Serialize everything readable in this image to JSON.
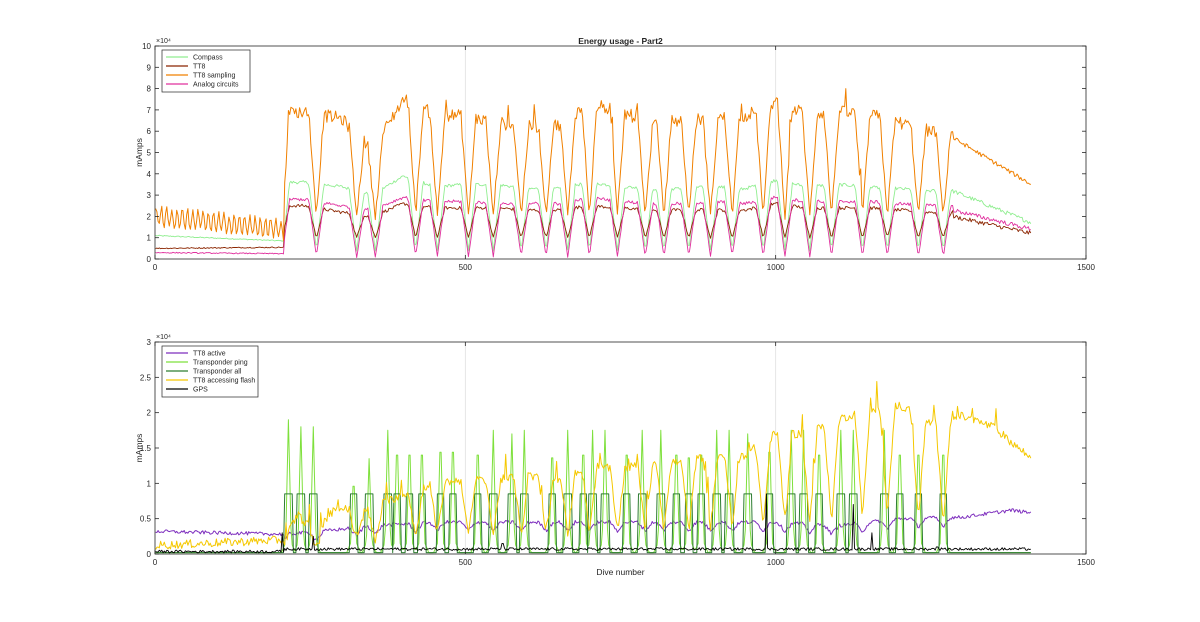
{
  "chart_data": [
    {
      "type": "line",
      "title": "Energy usage - Part2",
      "xlabel": "",
      "ylabel": "mAmps",
      "xlim": [
        0,
        1500
      ],
      "ylim": [
        0,
        10
      ],
      "x_ticks": [
        0,
        500,
        1000,
        1500
      ],
      "y_ticks": [
        0,
        1,
        2,
        3,
        4,
        5,
        6,
        7,
        8,
        9,
        10
      ],
      "y_exponent_label": "×10⁴",
      "y_multiplier": 10000,
      "grid": "x-only",
      "legend_position": "top-left",
      "x_range": [
        1,
        1412
      ],
      "series": [
        {
          "name": "Compass",
          "color": "#90ee90",
          "width": 0.9,
          "pre": [
            {
              "x": 0,
              "y": 1.1
            },
            {
              "x": 207,
              "y": 0.85
            }
          ],
          "low": 0.4,
          "high": 3.3,
          "post": [
            3.2,
            1.7
          ],
          "high_pts": [
            [
              240,
              3.6
            ],
            [
              300,
              3.4
            ],
            [
              350,
              3.0
            ],
            [
              400,
              3.9
            ],
            [
              450,
              3.4
            ],
            [
              500,
              3.5
            ],
            [
              550,
              3.5
            ],
            [
              600,
              3.3
            ],
            [
              650,
              3.3
            ],
            [
              700,
              3.6
            ],
            [
              750,
              3.4
            ],
            [
              800,
              3.3
            ],
            [
              850,
              3.3
            ],
            [
              900,
              3.4
            ],
            [
              950,
              3.3
            ],
            [
              1000,
              3.7
            ],
            [
              1050,
              3.4
            ],
            [
              1100,
              3.5
            ],
            [
              1150,
              3.4
            ],
            [
              1200,
              3.3
            ],
            [
              1250,
              3.2
            ]
          ]
        },
        {
          "name": "TT8",
          "color": "#8b2500",
          "width": 0.9,
          "pre": [
            {
              "x": 0,
              "y": 0.5
            },
            {
              "x": 207,
              "y": 0.55
            }
          ],
          "low": 1.0,
          "high": 2.4,
          "post": [
            2.0,
            1.2
          ],
          "high_pts": [
            [
              240,
              2.5
            ],
            [
              300,
              2.2
            ],
            [
              350,
              2.0
            ],
            [
              400,
              2.6
            ],
            [
              450,
              2.4
            ],
            [
              500,
              2.4
            ],
            [
              550,
              2.4
            ],
            [
              600,
              2.3
            ],
            [
              650,
              2.3
            ],
            [
              700,
              2.5
            ],
            [
              750,
              2.4
            ],
            [
              800,
              2.3
            ],
            [
              850,
              2.3
            ],
            [
              900,
              2.3
            ],
            [
              950,
              2.3
            ],
            [
              1000,
              2.6
            ],
            [
              1050,
              2.4
            ],
            [
              1100,
              2.4
            ],
            [
              1150,
              2.4
            ],
            [
              1200,
              2.3
            ],
            [
              1250,
              2.2
            ]
          ]
        },
        {
          "name": "TT8 sampling",
          "color": "#f08000",
          "width": 1.0,
          "pre": [
            {
              "x": 0,
              "y": 2.0
            },
            {
              "x": 207,
              "y": 1.4
            }
          ],
          "low": 2.0,
          "high": 6.5,
          "post": [
            5.7,
            3.5
          ],
          "high_pts": [
            [
              240,
              6.9
            ],
            [
              300,
              6.6
            ],
            [
              350,
              5.1
            ],
            [
              400,
              7.5
            ],
            [
              450,
              6.8
            ],
            [
              500,
              6.7
            ],
            [
              550,
              6.4
            ],
            [
              600,
              6.2
            ],
            [
              650,
              6.3
            ],
            [
              700,
              7.3
            ],
            [
              750,
              6.9
            ],
            [
              800,
              6.4
            ],
            [
              850,
              6.5
            ],
            [
              900,
              6.6
            ],
            [
              950,
              6.7
            ],
            [
              1000,
              7.4
            ],
            [
              1050,
              6.8
            ],
            [
              1100,
              6.9
            ],
            [
              1150,
              6.8
            ],
            [
              1200,
              6.4
            ],
            [
              1250,
              6.0
            ]
          ]
        },
        {
          "name": "Analog circuits",
          "color": "#e0309e",
          "width": 0.9,
          "pre": [
            {
              "x": 0,
              "y": 0.3
            },
            {
              "x": 207,
              "y": 0.25
            }
          ],
          "low": 0.1,
          "high": 2.6,
          "post": [
            2.3,
            1.4
          ],
          "high_pts": [
            [
              240,
              2.8
            ],
            [
              300,
              2.5
            ],
            [
              350,
              2.3
            ],
            [
              400,
              2.9
            ],
            [
              450,
              2.7
            ],
            [
              500,
              2.7
            ],
            [
              550,
              2.6
            ],
            [
              600,
              2.6
            ],
            [
              650,
              2.6
            ],
            [
              700,
              2.9
            ],
            [
              750,
              2.7
            ],
            [
              800,
              2.6
            ],
            [
              850,
              2.6
            ],
            [
              900,
              2.7
            ],
            [
              950,
              2.6
            ],
            [
              1000,
              2.9
            ],
            [
              1050,
              2.7
            ],
            [
              1100,
              2.7
            ],
            [
              1150,
              2.7
            ],
            [
              1200,
              2.6
            ],
            [
              1250,
              2.5
            ]
          ]
        }
      ]
    },
    {
      "type": "line",
      "title": "",
      "xlabel": "Dive number",
      "ylabel": "mAmps",
      "xlim": [
        0,
        1500
      ],
      "ylim": [
        0,
        3
      ],
      "x_ticks": [
        0,
        500,
        1000,
        1500
      ],
      "y_ticks": [
        0,
        0.5,
        1,
        1.5,
        2,
        2.5,
        3
      ],
      "y_exponent_label": "×10⁴",
      "y_multiplier": 10000,
      "grid": "x-only",
      "legend_position": "top-left",
      "x_range": [
        1,
        1412
      ],
      "series": [
        {
          "name": "TT8 active",
          "color": "#7e2fbe",
          "width": 1.0,
          "points": [
            [
              0,
              0.32
            ],
            [
              207,
              0.28
            ],
            [
              240,
              0.3
            ],
            [
              300,
              0.35
            ],
            [
              350,
              0.4
            ],
            [
              450,
              0.45
            ],
            [
              600,
              0.45
            ],
            [
              800,
              0.45
            ],
            [
              1000,
              0.45
            ],
            [
              1100,
              0.4
            ],
            [
              1200,
              0.5
            ],
            [
              1300,
              0.52
            ],
            [
              1380,
              0.62
            ],
            [
              1412,
              0.58
            ]
          ]
        },
        {
          "name": "Transponder ping",
          "color": "#7ee03c",
          "width": 1.0,
          "peaks": [
            [
              215,
              1.9
            ],
            [
              235,
              1.8
            ],
            [
              255,
              1.8
            ],
            [
              320,
              1.2
            ],
            [
              345,
              1.35
            ],
            [
              375,
              1.75
            ],
            [
              390,
              1.75
            ],
            [
              410,
              1.75
            ],
            [
              430,
              1.75
            ],
            [
              460,
              1.8
            ],
            [
              480,
              1.8
            ],
            [
              520,
              1.75
            ],
            [
              545,
              1.75
            ],
            [
              575,
              1.7
            ],
            [
              595,
              1.75
            ],
            [
              640,
              1.7
            ],
            [
              665,
              1.75
            ],
            [
              690,
              1.75
            ],
            [
              705,
              1.75
            ],
            [
              725,
              1.75
            ],
            [
              760,
              1.75
            ],
            [
              785,
              1.75
            ],
            [
              815,
              1.75
            ],
            [
              840,
              1.75
            ],
            [
              860,
              1.7
            ],
            [
              880,
              1.75
            ],
            [
              905,
              1.75
            ],
            [
              925,
              1.75
            ],
            [
              955,
              1.7
            ],
            [
              990,
              1.8
            ],
            [
              1025,
              1.75
            ],
            [
              1045,
              1.75
            ],
            [
              1070,
              1.75
            ],
            [
              1105,
              1.75
            ],
            [
              1125,
              1.75
            ],
            [
              1175,
              1.75
            ],
            [
              1200,
              1.75
            ],
            [
              1230,
              1.75
            ],
            [
              1270,
              1.75
            ]
          ]
        },
        {
          "name": "Transponder all",
          "color": "#2e7d32",
          "width": 1.0,
          "peaks_value": 0.85
        },
        {
          "name": "TT8 accessing flash",
          "color": "#f5c800",
          "width": 1.0,
          "points": [
            [
              0,
              0.12
            ],
            [
              207,
              0.2
            ],
            [
              230,
              0.55
            ],
            [
              260,
              0.3
            ],
            [
              290,
              0.65
            ],
            [
              340,
              0.6
            ],
            [
              400,
              0.85
            ],
            [
              450,
              1.0
            ],
            [
              500,
              1.05
            ],
            [
              550,
              1.05
            ],
            [
              600,
              1.1
            ],
            [
              650,
              1.05
            ],
            [
              700,
              1.25
            ],
            [
              750,
              1.2
            ],
            [
              800,
              1.3
            ],
            [
              850,
              1.3
            ],
            [
              900,
              1.4
            ],
            [
              950,
              1.4
            ],
            [
              1000,
              1.7
            ],
            [
              1050,
              1.7
            ],
            [
              1100,
              1.9
            ],
            [
              1150,
              2.05
            ],
            [
              1200,
              2.1
            ],
            [
              1250,
              1.85
            ],
            [
              1300,
              1.95
            ],
            [
              1350,
              1.8
            ],
            [
              1412,
              1.35
            ]
          ]
        },
        {
          "name": "GPS",
          "color": "#000000",
          "width": 0.9,
          "base": 0.05,
          "spikes": [
            [
              205,
              0.3
            ],
            [
              255,
              0.25
            ],
            [
              560,
              0.15
            ],
            [
              985,
              0.85
            ],
            [
              1125,
              0.7
            ],
            [
              1155,
              0.3
            ],
            [
              1260,
              0.1
            ]
          ]
        }
      ]
    }
  ]
}
